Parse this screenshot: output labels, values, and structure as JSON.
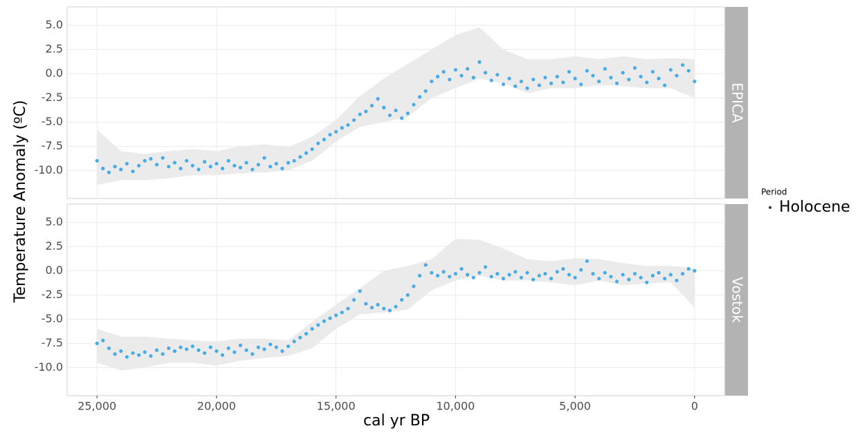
{
  "chart_data": {
    "type": "scatter",
    "x_label": "cal yr BP",
    "y_label": "Temperature Anomaly (ºC)",
    "legend_title": "Period",
    "series": [
      {
        "name": "Holocene",
        "color": "#2aa0e8"
      }
    ],
    "xlim": [
      26250,
      -1250
    ],
    "xticks": [
      {
        "value": 25000,
        "label": "25,000"
      },
      {
        "value": 20000,
        "label": "20,000"
      },
      {
        "value": 15000,
        "label": "15,000"
      },
      {
        "value": 10000,
        "label": "10,000"
      },
      {
        "value": 5000,
        "label": "5,000"
      },
      0
    ],
    "ylim": [
      -12.9,
      6.9
    ],
    "yticks": [
      {
        "value": 5,
        "label": "5.0"
      },
      2.5,
      {
        "value": 0,
        "label": "0.0"
      },
      -2.5,
      {
        "value": -5,
        "label": "-5.0"
      },
      -7.5,
      {
        "value": -10,
        "label": "-10.0"
      }
    ],
    "grid": true,
    "band_color": "#ebebeb",
    "x": [
      25000,
      24750,
      24500,
      24250,
      24000,
      23750,
      23500,
      23250,
      23000,
      22750,
      22500,
      22250,
      22000,
      21750,
      21500,
      21250,
      21000,
      20750,
      20500,
      20250,
      20000,
      19750,
      19500,
      19250,
      19000,
      18750,
      18500,
      18250,
      18000,
      17750,
      17500,
      17250,
      17000,
      16750,
      16500,
      16250,
      16000,
      15750,
      15500,
      15250,
      15000,
      14750,
      14500,
      14250,
      14000,
      13750,
      13500,
      13250,
      13000,
      12750,
      12500,
      12250,
      12000,
      11750,
      11500,
      11250,
      11000,
      10750,
      10500,
      10250,
      10000,
      9750,
      9500,
      9250,
      9000,
      8750,
      8500,
      8250,
      8000,
      7750,
      7500,
      7250,
      7000,
      6750,
      6500,
      6250,
      6000,
      5750,
      5500,
      5250,
      5000,
      4750,
      4500,
      4250,
      4000,
      3750,
      3500,
      3250,
      3000,
      2750,
      2500,
      2250,
      2000,
      1750,
      1500,
      1250,
      1000,
      750,
      500,
      250,
      0
    ],
    "band_x": [
      25000,
      24000,
      23000,
      22000,
      21000,
      20000,
      19000,
      18000,
      17000,
      16000,
      15000,
      14000,
      13000,
      12000,
      11000,
      10000,
      9000,
      8000,
      7000,
      6000,
      5000,
      4000,
      3000,
      2000,
      1000,
      0
    ],
    "facets": [
      {
        "label": "EPICA",
        "values": [
          -9.0,
          -9.8,
          -10.2,
          -9.6,
          -9.9,
          -9.3,
          -10.1,
          -9.5,
          -9.0,
          -8.8,
          -9.4,
          -8.7,
          -9.6,
          -9.2,
          -9.8,
          -9.0,
          -9.5,
          -9.9,
          -9.1,
          -9.6,
          -9.3,
          -9.8,
          -9.0,
          -9.5,
          -9.7,
          -9.2,
          -9.9,
          -9.4,
          -8.7,
          -9.6,
          -9.3,
          -9.8,
          -9.2,
          -9.0,
          -8.6,
          -8.2,
          -7.8,
          -7.2,
          -6.8,
          -6.3,
          -6.0,
          -5.6,
          -5.3,
          -4.8,
          -4.2,
          -3.9,
          -3.3,
          -2.6,
          -3.5,
          -4.3,
          -3.8,
          -4.6,
          -4.1,
          -3.2,
          -2.4,
          -1.8,
          -0.8,
          -0.3,
          0.2,
          -0.6,
          0.4,
          -0.2,
          0.5,
          -0.4,
          1.2,
          0.1,
          -0.7,
          -0.1,
          -1.1,
          -0.5,
          -1.3,
          -0.8,
          -1.5,
          -0.6,
          -1.2,
          -0.4,
          -1.0,
          -0.3,
          -0.9,
          0.2,
          -0.5,
          -1.1,
          0.3,
          -0.2,
          -0.8,
          0.5,
          -0.4,
          -1.0,
          0.1,
          -0.6,
          0.6,
          -0.3,
          -0.9,
          0.2,
          -0.5,
          -1.2,
          0.4,
          -0.2,
          0.9,
          0.3,
          -0.8
        ],
        "band_lower": [
          -11.5,
          -11,
          -11,
          -10.8,
          -10.5,
          -10.5,
          -10.3,
          -10.2,
          -10,
          -9,
          -7,
          -5.5,
          -5,
          -4.5,
          -2.5,
          -1.5,
          -0.5,
          -1,
          -2,
          -1.5,
          -1.5,
          -1.2,
          -1.3,
          -1.5,
          -1.5,
          -2.5
        ],
        "band_upper": [
          -5.8,
          -8,
          -8.3,
          -8,
          -7.8,
          -8,
          -7.5,
          -7.3,
          -7.6,
          -6.5,
          -4.8,
          -2.3,
          -0.5,
          1,
          2.5,
          4,
          4.8,
          2.5,
          1.5,
          1.5,
          1.8,
          1.5,
          1.8,
          1.5,
          1.6,
          1.5
        ]
      },
      {
        "label": "Vostok",
        "values": [
          -7.5,
          -7.2,
          -8.0,
          -8.6,
          -8.3,
          -8.9,
          -8.5,
          -8.7,
          -8.4,
          -8.8,
          -8.2,
          -8.6,
          -8.0,
          -8.3,
          -7.9,
          -8.1,
          -7.8,
          -8.2,
          -8.5,
          -7.9,
          -8.3,
          -8.7,
          -8.0,
          -8.4,
          -7.7,
          -8.2,
          -8.6,
          -7.9,
          -8.1,
          -7.6,
          -7.9,
          -8.3,
          -7.8,
          -7.3,
          -6.9,
          -6.5,
          -6.0,
          -5.6,
          -5.2,
          -4.9,
          -4.6,
          -4.3,
          -3.9,
          -3.0,
          -2.1,
          -3.4,
          -3.8,
          -3.5,
          -3.9,
          -4.1,
          -3.7,
          -3.0,
          -2.5,
          -1.6,
          -0.5,
          0.6,
          -0.2,
          -0.5,
          -0.1,
          -0.6,
          -0.3,
          0.2,
          -0.4,
          -0.7,
          -0.2,
          0.4,
          -0.6,
          -0.3,
          -0.8,
          -0.4,
          -0.1,
          -0.7,
          -0.2,
          -0.9,
          -0.5,
          -0.3,
          -0.8,
          -0.1,
          0.2,
          -0.4,
          -0.7,
          0.1,
          1.0,
          -0.3,
          -0.8,
          -0.2,
          -0.6,
          -1.1,
          -0.4,
          -0.9,
          -0.3,
          -0.7,
          -1.2,
          -0.5,
          -0.2,
          -0.8,
          -0.4,
          -1.0,
          -0.3,
          0.2,
          0.0
        ],
        "band_lower": [
          -9.5,
          -10.3,
          -10,
          -9.5,
          -9.5,
          -9.8,
          -9.3,
          -9,
          -8.8,
          -8,
          -6,
          -4.5,
          -4.3,
          -4,
          -2,
          -1,
          -0.5,
          -1,
          -1,
          -1.2,
          -1.5,
          -1,
          -1.5,
          -1.3,
          -1.2,
          -3.8
        ],
        "band_upper": [
          -6,
          -6.8,
          -6.8,
          -7,
          -7.2,
          -7.3,
          -7,
          -7,
          -7.2,
          -5.3,
          -3.5,
          -1.8,
          0,
          0.5,
          1.2,
          3.3,
          3.2,
          2.3,
          1.2,
          1,
          1.3,
          1.2,
          0.8,
          0.5,
          0.5,
          0.3
        ]
      }
    ]
  }
}
